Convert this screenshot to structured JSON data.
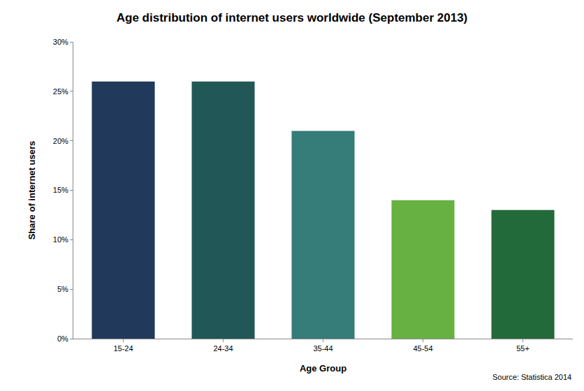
{
  "chart_data": {
    "type": "bar",
    "title": "Age distribution of internet users worldwide (September 2013)",
    "x_label": "Age Group",
    "y_label": "Share of internet users",
    "annotations": [
      "Source: Statistica 2014"
    ],
    "categories": [
      "15-24",
      "24-34",
      "35-44",
      "45-54",
      "55+"
    ],
    "values": [
      26,
      26,
      21,
      14,
      13
    ],
    "colors": [
      "#21395a",
      "#215757",
      "#367c78",
      "#67b142",
      "#236a3a"
    ],
    "ylim": [
      0,
      30
    ],
    "yticks": [
      {
        "value": 0,
        "label": "0%"
      },
      {
        "value": 5,
        "label": "5%"
      },
      {
        "value": 10,
        "label": "10%"
      },
      {
        "value": 15,
        "label": "15%"
      },
      {
        "value": 20,
        "label": "20%"
      },
      {
        "value": 25,
        "label": "25%"
      },
      {
        "value": 30,
        "label": "30%"
      }
    ],
    "grid": false
  }
}
